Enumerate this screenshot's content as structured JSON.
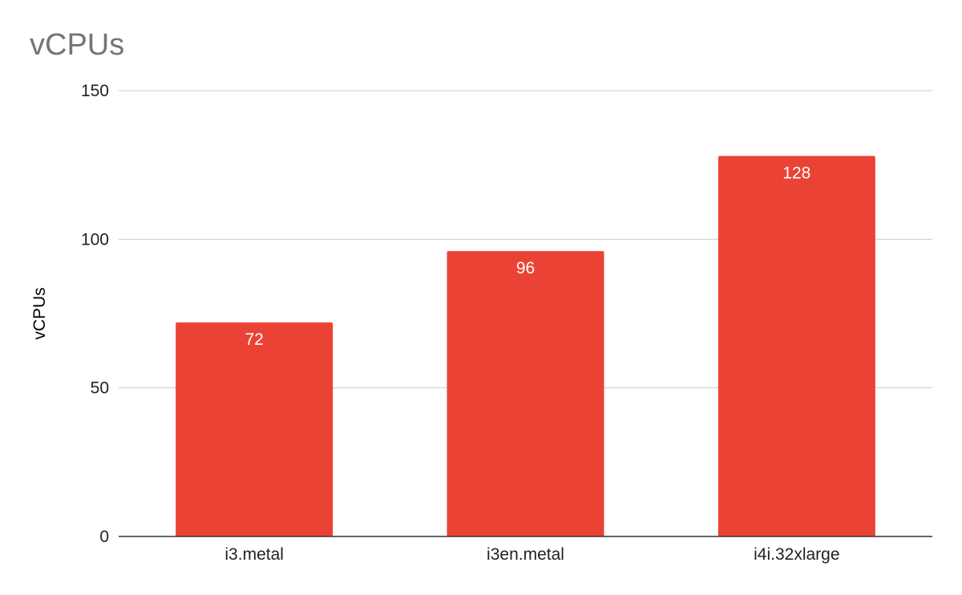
{
  "chart_data": {
    "type": "bar",
    "title": "vCPUs",
    "xlabel": "",
    "ylabel": "vCPUs",
    "categories": [
      "i3.metal",
      "i3en.metal",
      "i4i.32xlarge"
    ],
    "values": [
      72,
      96,
      128
    ],
    "ylim": [
      0,
      150
    ],
    "yticks": [
      0,
      50,
      100,
      150
    ],
    "data_labels": [
      "72",
      "96",
      "128"
    ],
    "bar_color": "#ea4335",
    "grid": true,
    "legend": "none"
  }
}
